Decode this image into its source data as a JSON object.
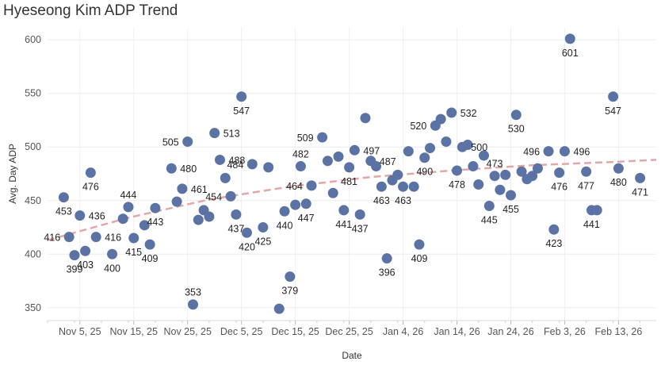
{
  "chart_data": {
    "type": "scatter",
    "title": "Hyeseong Kim ADP Trend",
    "xlabel": "Date",
    "ylabel": "Avg. Day ADP",
    "x_is_date": true,
    "xlim": [
      "2025-10-30",
      "2026-02-20"
    ],
    "ylim": [
      338,
      612
    ],
    "yticks": [
      350,
      400,
      450,
      500,
      550,
      600
    ],
    "xticks": [
      {
        "date": "2025-11-05",
        "label": "Nov 5, 25"
      },
      {
        "date": "2025-11-15",
        "label": "Nov 15, 25"
      },
      {
        "date": "2025-11-25",
        "label": "Nov 25, 25"
      },
      {
        "date": "2025-12-05",
        "label": "Dec 5, 25"
      },
      {
        "date": "2025-12-15",
        "label": "Dec 15, 25"
      },
      {
        "date": "2025-12-25",
        "label": "Dec 25, 25"
      },
      {
        "date": "2026-01-04",
        "label": "Jan 4, 26"
      },
      {
        "date": "2026-01-14",
        "label": "Jan 14, 26"
      },
      {
        "date": "2026-01-24",
        "label": "Jan 24, 26"
      },
      {
        "date": "2026-02-03",
        "label": "Feb 3, 26"
      },
      {
        "date": "2026-02-13",
        "label": "Feb 13, 26"
      }
    ],
    "grid": true,
    "point_color": "#5b73a4",
    "trend_color": "#e3a7a5",
    "trend_style": "dashed",
    "trend": [
      {
        "x": "2025-10-30",
        "y": 413
      },
      {
        "x": "2025-11-14",
        "y": 434
      },
      {
        "x": "2025-11-29",
        "y": 451
      },
      {
        "x": "2025-12-14",
        "y": 463
      },
      {
        "x": "2025-12-29",
        "y": 472
      },
      {
        "x": "2026-01-13",
        "y": 478
      },
      {
        "x": "2026-01-28",
        "y": 483
      },
      {
        "x": "2026-02-12",
        "y": 486
      },
      {
        "x": "2026-02-20",
        "y": 488
      }
    ],
    "points": [
      {
        "x": "2025-11-02",
        "y": 453,
        "label": "453",
        "lp": "b"
      },
      {
        "x": "2025-11-03",
        "y": 416,
        "label": "416",
        "lp": "l"
      },
      {
        "x": "2025-11-04",
        "y": 399,
        "label": "399",
        "lp": "b"
      },
      {
        "x": "2025-11-05",
        "y": 436,
        "label": "436",
        "lp": "r"
      },
      {
        "x": "2025-11-06",
        "y": 403,
        "label": "403",
        "lp": "b"
      },
      {
        "x": "2025-11-07",
        "y": 476,
        "label": "476",
        "lp": "b"
      },
      {
        "x": "2025-11-08",
        "y": 416,
        "label": "416",
        "lp": "r"
      },
      {
        "x": "2025-11-11",
        "y": 400,
        "label": "400",
        "lp": "b"
      },
      {
        "x": "2025-11-13",
        "y": 433,
        "label": "",
        "lp": ""
      },
      {
        "x": "2025-11-14",
        "y": 444,
        "label": "444",
        "lp": "t"
      },
      {
        "x": "2025-11-15",
        "y": 415,
        "label": "415",
        "lp": "b"
      },
      {
        "x": "2025-11-17",
        "y": 427,
        "label": "",
        "lp": ""
      },
      {
        "x": "2025-11-18",
        "y": 409,
        "label": "409",
        "lp": "b"
      },
      {
        "x": "2025-11-19",
        "y": 443,
        "label": "443",
        "lp": "b"
      },
      {
        "x": "2025-11-22",
        "y": 480,
        "label": "480",
        "lp": "r"
      },
      {
        "x": "2025-11-23",
        "y": 449,
        "label": "",
        "lp": ""
      },
      {
        "x": "2025-11-24",
        "y": 461,
        "label": "461",
        "lp": "r"
      },
      {
        "x": "2025-11-25",
        "y": 505,
        "label": "505",
        "lp": "l"
      },
      {
        "x": "2025-11-26",
        "y": 353,
        "label": "353",
        "lp": "t"
      },
      {
        "x": "2025-11-27",
        "y": 432,
        "label": "",
        "lp": ""
      },
      {
        "x": "2025-11-28",
        "y": 441,
        "label": "",
        "lp": ""
      },
      {
        "x": "2025-11-29",
        "y": 435,
        "label": "",
        "lp": ""
      },
      {
        "x": "2025-11-30",
        "y": 513,
        "label": "513",
        "lp": "r"
      },
      {
        "x": "2025-12-01",
        "y": 488,
        "label": "488",
        "lp": "r"
      },
      {
        "x": "2025-12-02",
        "y": 471,
        "label": "",
        "lp": ""
      },
      {
        "x": "2025-12-03",
        "y": 454,
        "label": "454",
        "lp": "l"
      },
      {
        "x": "2025-12-04",
        "y": 437,
        "label": "437",
        "lp": "b"
      },
      {
        "x": "2025-12-05",
        "y": 547,
        "label": "547",
        "lp": "b"
      },
      {
        "x": "2025-12-06",
        "y": 420,
        "label": "420",
        "lp": "b"
      },
      {
        "x": "2025-12-07",
        "y": 484,
        "label": "484",
        "lp": "l"
      },
      {
        "x": "2025-12-09",
        "y": 425,
        "label": "425",
        "lp": "b"
      },
      {
        "x": "2025-12-10",
        "y": 481,
        "label": "",
        "lp": ""
      },
      {
        "x": "2025-12-12",
        "y": 349,
        "label": "",
        "lp": ""
      },
      {
        "x": "2025-12-13",
        "y": 440,
        "label": "440",
        "lp": "b"
      },
      {
        "x": "2025-12-14",
        "y": 379,
        "label": "379",
        "lp": "b"
      },
      {
        "x": "2025-12-15",
        "y": 446,
        "label": "",
        "lp": ""
      },
      {
        "x": "2025-12-16",
        "y": 482,
        "label": "482",
        "lp": "t"
      },
      {
        "x": "2025-12-17",
        "y": 447,
        "label": "447",
        "lp": "b"
      },
      {
        "x": "2025-12-18",
        "y": 464,
        "label": "464",
        "lp": "l"
      },
      {
        "x": "2025-12-20",
        "y": 509,
        "label": "509",
        "lp": "l"
      },
      {
        "x": "2025-12-21",
        "y": 487,
        "label": "",
        "lp": ""
      },
      {
        "x": "2025-12-22",
        "y": 457,
        "label": "",
        "lp": ""
      },
      {
        "x": "2025-12-23",
        "y": 491,
        "label": "",
        "lp": ""
      },
      {
        "x": "2025-12-24",
        "y": 441,
        "label": "441",
        "lp": "b"
      },
      {
        "x": "2025-12-25",
        "y": 481,
        "label": "481",
        "lp": "b"
      },
      {
        "x": "2025-12-26",
        "y": 497,
        "label": "497",
        "lp": "r"
      },
      {
        "x": "2025-12-27",
        "y": 437,
        "label": "437",
        "lp": "b"
      },
      {
        "x": "2025-12-28",
        "y": 527,
        "label": "",
        "lp": ""
      },
      {
        "x": "2025-12-29",
        "y": 487,
        "label": "487",
        "lp": "r"
      },
      {
        "x": "2025-12-30",
        "y": 482,
        "label": "",
        "lp": ""
      },
      {
        "x": "2025-12-31",
        "y": 463,
        "label": "463",
        "lp": "b"
      },
      {
        "x": "2026-01-01",
        "y": 396,
        "label": "396",
        "lp": "b"
      },
      {
        "x": "2026-01-02",
        "y": 469,
        "label": "",
        "lp": ""
      },
      {
        "x": "2026-01-03",
        "y": 474,
        "label": "",
        "lp": ""
      },
      {
        "x": "2026-01-04",
        "y": 463,
        "label": "463",
        "lp": "b"
      },
      {
        "x": "2026-01-05",
        "y": 496,
        "label": "",
        "lp": ""
      },
      {
        "x": "2026-01-06",
        "y": 463,
        "label": "",
        "lp": ""
      },
      {
        "x": "2026-01-07",
        "y": 409,
        "label": "409",
        "lp": "b"
      },
      {
        "x": "2026-01-08",
        "y": 490,
        "label": "490",
        "lp": "b"
      },
      {
        "x": "2026-01-09",
        "y": 499,
        "label": "",
        "lp": ""
      },
      {
        "x": "2026-01-10",
        "y": 520,
        "label": "520",
        "lp": "l"
      },
      {
        "x": "2026-01-11",
        "y": 526,
        "label": "",
        "lp": ""
      },
      {
        "x": "2026-01-12",
        "y": 505,
        "label": "",
        "lp": ""
      },
      {
        "x": "2026-01-13",
        "y": 532,
        "label": "532",
        "lp": "r"
      },
      {
        "x": "2026-01-14",
        "y": 478,
        "label": "478",
        "lp": "b"
      },
      {
        "x": "2026-01-15",
        "y": 500,
        "label": "500",
        "lp": "r"
      },
      {
        "x": "2026-01-16",
        "y": 502,
        "label": "",
        "lp": ""
      },
      {
        "x": "2026-01-17",
        "y": 482,
        "label": "",
        "lp": ""
      },
      {
        "x": "2026-01-18",
        "y": 465,
        "label": "",
        "lp": ""
      },
      {
        "x": "2026-01-19",
        "y": 492,
        "label": "",
        "lp": ""
      },
      {
        "x": "2026-01-20",
        "y": 445,
        "label": "445",
        "lp": "b"
      },
      {
        "x": "2026-01-21",
        "y": 473,
        "label": "473",
        "lp": "t"
      },
      {
        "x": "2026-01-22",
        "y": 460,
        "label": "",
        "lp": ""
      },
      {
        "x": "2026-01-23",
        "y": 474,
        "label": "",
        "lp": ""
      },
      {
        "x": "2026-01-24",
        "y": 455,
        "label": "455",
        "lp": "b"
      },
      {
        "x": "2026-01-25",
        "y": 530,
        "label": "530",
        "lp": "b"
      },
      {
        "x": "2026-01-26",
        "y": 477,
        "label": "",
        "lp": ""
      },
      {
        "x": "2026-01-27",
        "y": 470,
        "label": "",
        "lp": ""
      },
      {
        "x": "2026-01-28",
        "y": 473,
        "label": "",
        "lp": ""
      },
      {
        "x": "2026-01-29",
        "y": 480,
        "label": "",
        "lp": ""
      },
      {
        "x": "2026-01-31",
        "y": 496,
        "label": "496",
        "lp": "l"
      },
      {
        "x": "2026-02-01",
        "y": 423,
        "label": "423",
        "lp": "b"
      },
      {
        "x": "2026-02-02",
        "y": 476,
        "label": "476",
        "lp": "b"
      },
      {
        "x": "2026-02-03",
        "y": 496,
        "label": "496",
        "lp": "r"
      },
      {
        "x": "2026-02-04",
        "y": 601,
        "label": "601",
        "lp": "b"
      },
      {
        "x": "2026-02-07",
        "y": 477,
        "label": "477",
        "lp": "b"
      },
      {
        "x": "2026-02-08",
        "y": 441,
        "label": "441",
        "lp": "b"
      },
      {
        "x": "2026-02-09",
        "y": 441,
        "label": "",
        "lp": ""
      },
      {
        "x": "2026-02-12",
        "y": 547,
        "label": "547",
        "lp": "b"
      },
      {
        "x": "2026-02-13",
        "y": 480,
        "label": "480",
        "lp": "b"
      },
      {
        "x": "2026-02-17",
        "y": 471,
        "label": "471",
        "lp": "b"
      }
    ]
  }
}
